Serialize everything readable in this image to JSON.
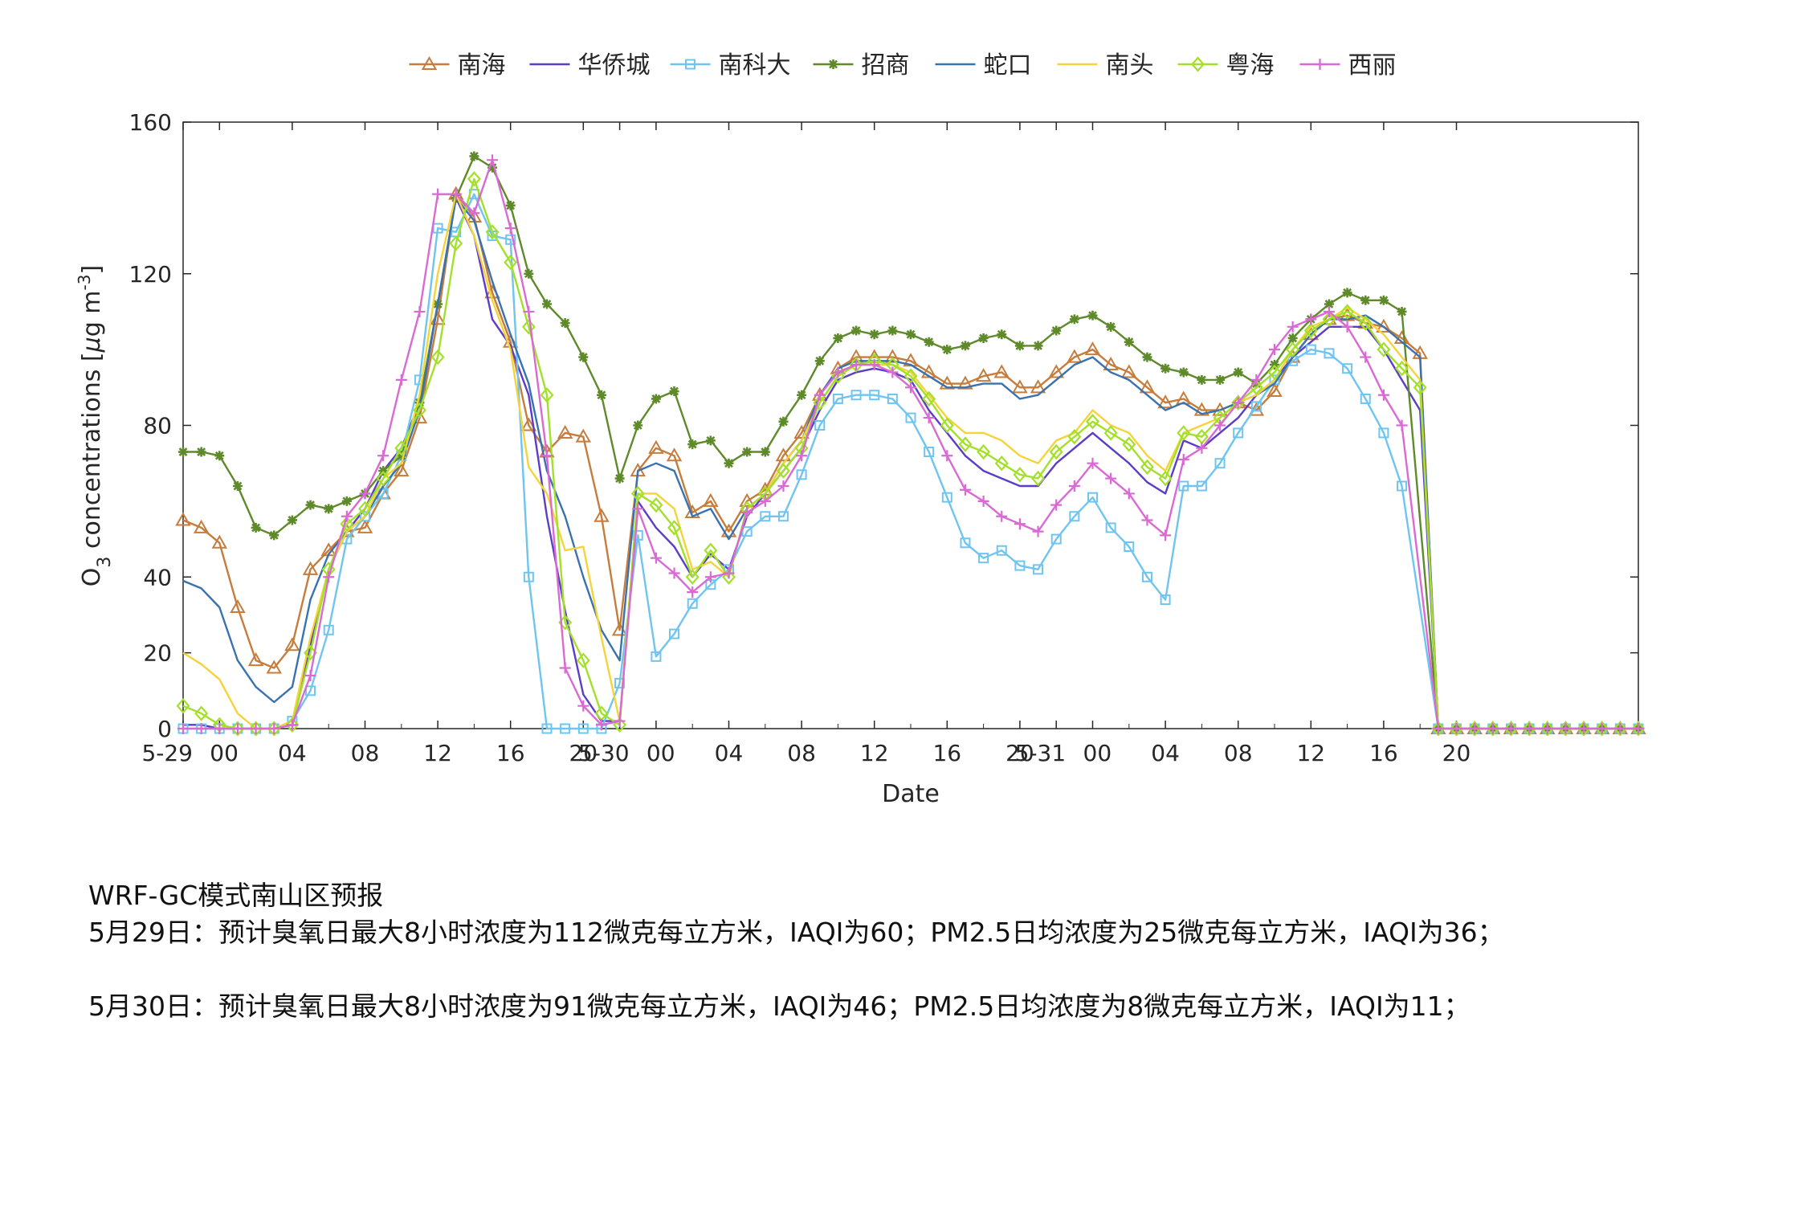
{
  "chart_data": {
    "type": "line",
    "xlabel": "Date",
    "ylabel_main": "O",
    "ylabel_sub": "3",
    "ylabel_rest": " concentrations [",
    "ylabel_mu": "μ",
    "ylabel_unit": "g m",
    "ylabel_sup": "-3",
    "ylabel_close": "]",
    "ylim": [
      0,
      160
    ],
    "yticks": [
      0,
      20,
      40,
      80,
      120,
      160
    ],
    "xlim": [
      0,
      80
    ],
    "xticks": [
      {
        "x": 0,
        "label": "5-29"
      },
      {
        "x": 2,
        "label": "00"
      },
      {
        "x": 6,
        "label": "04"
      },
      {
        "x": 10,
        "label": "08"
      },
      {
        "x": 14,
        "label": "12"
      },
      {
        "x": 18,
        "label": "16"
      },
      {
        "x": 22,
        "label": "20"
      },
      {
        "x": 24,
        "label": "5-30"
      },
      {
        "x": 26,
        "label": "00"
      },
      {
        "x": 30,
        "label": "04"
      },
      {
        "x": 34,
        "label": "08"
      },
      {
        "x": 38,
        "label": "12"
      },
      {
        "x": 42,
        "label": "16"
      },
      {
        "x": 46,
        "label": "20"
      },
      {
        "x": 48,
        "label": "5-31"
      },
      {
        "x": 50,
        "label": "00"
      },
      {
        "x": 54,
        "label": "04"
      },
      {
        "x": 58,
        "label": "08"
      },
      {
        "x": 62,
        "label": "12"
      },
      {
        "x": 66,
        "label": "16"
      },
      {
        "x": 70,
        "label": "20"
      }
    ],
    "legend_position": "top",
    "series": [
      {
        "name": "南海",
        "color": "#c57c3c",
        "marker": "triangle",
        "values": [
          55,
          53,
          49,
          32,
          18,
          16,
          22,
          42,
          47,
          52,
          53,
          62,
          68,
          82,
          108,
          141,
          135,
          115,
          102,
          80,
          73,
          78,
          77,
          56,
          26,
          68,
          74,
          72,
          57,
          60,
          52,
          60,
          63,
          72,
          78,
          88,
          95,
          98,
          98,
          98,
          97,
          94,
          91,
          91,
          93,
          94,
          90,
          90,
          94,
          98,
          100,
          96,
          94,
          90,
          86,
          87,
          84,
          84,
          86,
          84,
          89,
          98,
          104,
          108,
          109,
          107,
          106,
          103,
          99
        ]
      },
      {
        "name": "华侨城",
        "color": "#5b3dc8",
        "marker": "none",
        "values": [
          1,
          1,
          0,
          0,
          0,
          0,
          1,
          22,
          42,
          52,
          58,
          68,
          74,
          86,
          112,
          140,
          130,
          108,
          101,
          88,
          56,
          31,
          9,
          2,
          2,
          60,
          53,
          48,
          40,
          46,
          42,
          56,
          62,
          68,
          74,
          84,
          92,
          94,
          95,
          94,
          92,
          84,
          78,
          72,
          68,
          66,
          64,
          64,
          70,
          74,
          78,
          74,
          70,
          65,
          62,
          76,
          74,
          78,
          82,
          88,
          92,
          98,
          102,
          106,
          106,
          106,
          100,
          92,
          84
        ]
      },
      {
        "name": "南科大",
        "color": "#6fc5f0",
        "marker": "square",
        "values": [
          0,
          0,
          0,
          0,
          0,
          0,
          2,
          10,
          26,
          50,
          56,
          62,
          72,
          92,
          132,
          131,
          141,
          130,
          129,
          40,
          0,
          0,
          0,
          0,
          12,
          51,
          19,
          25,
          33,
          38,
          42,
          52,
          56,
          56,
          67,
          80,
          87,
          88,
          88,
          87,
          82,
          73,
          61,
          49,
          45,
          47,
          43,
          42,
          50,
          56,
          61,
          53,
          48,
          40,
          34,
          64,
          64,
          70,
          78,
          85,
          92,
          97,
          100,
          99,
          95,
          87,
          78,
          64
        ]
      },
      {
        "name": "招商",
        "color": "#5e8a2a",
        "marker": "star",
        "values": [
          73,
          73,
          72,
          64,
          53,
          51,
          55,
          59,
          58,
          60,
          62,
          68,
          72,
          86,
          112,
          140,
          151,
          148,
          138,
          120,
          112,
          107,
          98,
          88,
          66,
          80,
          87,
          89,
          75,
          76,
          70,
          73,
          73,
          81,
          88,
          97,
          103,
          105,
          104,
          105,
          104,
          102,
          100,
          101,
          103,
          104,
          101,
          101,
          105,
          108,
          109,
          106,
          102,
          98,
          95,
          94,
          92,
          92,
          94,
          91,
          96,
          103,
          108,
          112,
          115,
          113,
          113,
          110
        ]
      },
      {
        "name": "蛇口",
        "color": "#3a72b0",
        "marker": "none",
        "values": [
          39,
          37,
          32,
          18,
          11,
          7,
          11,
          34,
          46,
          52,
          56,
          64,
          70,
          84,
          112,
          140,
          134,
          118,
          104,
          91,
          68,
          56,
          40,
          26,
          18,
          68,
          70,
          68,
          56,
          58,
          50,
          58,
          62,
          70,
          76,
          88,
          95,
          97,
          97,
          97,
          96,
          93,
          90,
          90,
          91,
          91,
          87,
          88,
          92,
          96,
          98,
          94,
          92,
          88,
          84,
          86,
          83,
          84,
          86,
          88,
          91,
          98,
          104,
          108,
          108,
          109,
          106,
          102,
          98
        ]
      },
      {
        "name": "南头",
        "color": "#f5d33a",
        "marker": "none",
        "values": [
          20,
          17,
          13,
          4,
          0,
          0,
          2,
          24,
          42,
          52,
          56,
          66,
          70,
          88,
          120,
          141,
          130,
          113,
          100,
          69,
          62,
          47,
          48,
          24,
          2,
          62,
          62,
          58,
          42,
          44,
          40,
          58,
          62,
          70,
          76,
          86,
          93,
          96,
          96,
          96,
          94,
          88,
          82,
          78,
          78,
          76,
          72,
          70,
          76,
          78,
          84,
          80,
          78,
          72,
          68,
          78,
          80,
          82,
          86,
          88,
          92,
          100,
          106,
          108,
          111,
          108,
          104,
          98,
          92
        ]
      },
      {
        "name": "粤海",
        "color": "#a3e02a",
        "marker": "diamond",
        "values": [
          6,
          4,
          1,
          0,
          0,
          0,
          1,
          20,
          42,
          54,
          58,
          66,
          74,
          84,
          98,
          128,
          145,
          131,
          123,
          106,
          88,
          28,
          18,
          4,
          1,
          62,
          59,
          53,
          40,
          47,
          40,
          58,
          62,
          68,
          74,
          86,
          93,
          96,
          97,
          96,
          93,
          87,
          80,
          75,
          73,
          70,
          67,
          66,
          73,
          77,
          81,
          78,
          75,
          69,
          66,
          78,
          77,
          82,
          86,
          90,
          94,
          100,
          105,
          108,
          110,
          107,
          100,
          95,
          90
        ]
      },
      {
        "name": "西丽",
        "color": "#d96ad4",
        "marker": "plus",
        "values": [
          0,
          0,
          0,
          0,
          0,
          0,
          1,
          14,
          40,
          56,
          62,
          72,
          92,
          110,
          141,
          141,
          136,
          150,
          132,
          110,
          72,
          16,
          6,
          1,
          2,
          58,
          45,
          41,
          36,
          40,
          41,
          57,
          60,
          64,
          72,
          88,
          94,
          96,
          96,
          94,
          90,
          82,
          72,
          63,
          60,
          56,
          54,
          52,
          59,
          64,
          70,
          66,
          62,
          55,
          51,
          71,
          74,
          80,
          86,
          92,
          100,
          106,
          108,
          110,
          106,
          98,
          88,
          80
        ]
      }
    ],
    "zero_tail": {
      "start": 69,
      "end": 80,
      "value": 0
    }
  },
  "notes": {
    "title": "WRF-GC模式南山区预报",
    "line1": "5月29日：预计臭氧日最大8小时浓度为112微克每立方米，IAQI为60；PM2.5日均浓度为25微克每立方米，IAQI为36；",
    "line2": "5月30日：预计臭氧日最大8小时浓度为91微克每立方米，IAQI为46；PM2.5日均浓度为8微克每立方米，IAQI为11；"
  }
}
